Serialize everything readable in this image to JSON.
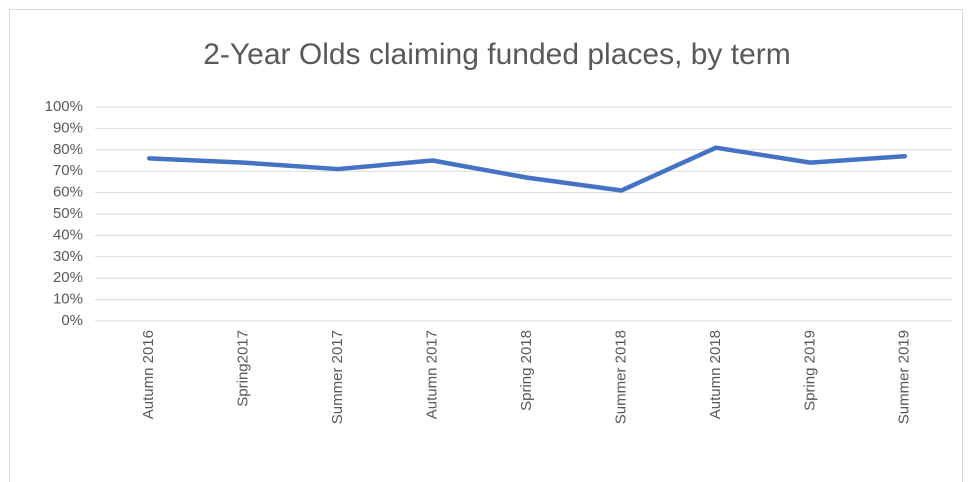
{
  "chart_data": {
    "type": "line",
    "title": "2-Year Olds claiming funded places, by term",
    "categories": [
      "Autumn 2016",
      "Spring2017",
      "Summer 2017",
      "Autumn 2017",
      "Spring 2018",
      "Summer 2018",
      "Autumn 2018",
      "Spring 2019",
      "Summer 2019"
    ],
    "values": [
      76,
      74,
      71,
      75,
      67,
      61,
      81,
      74,
      77
    ],
    "color": "#4472c4",
    "ylim": [
      0,
      100
    ],
    "yticks": [
      {
        "value": 0,
        "label": "0%"
      },
      {
        "value": 10,
        "label": "10%"
      },
      {
        "value": 20,
        "label": "20%"
      },
      {
        "value": 30,
        "label": "30%"
      },
      {
        "value": 40,
        "label": "40%"
      },
      {
        "value": 50,
        "label": "50%"
      },
      {
        "value": 60,
        "label": "60%"
      },
      {
        "value": 70,
        "label": "70%"
      },
      {
        "value": 80,
        "label": "80%"
      },
      {
        "value": 90,
        "label": "90%"
      },
      {
        "value": 100,
        "label": "100%"
      }
    ],
    "grid": true
  }
}
